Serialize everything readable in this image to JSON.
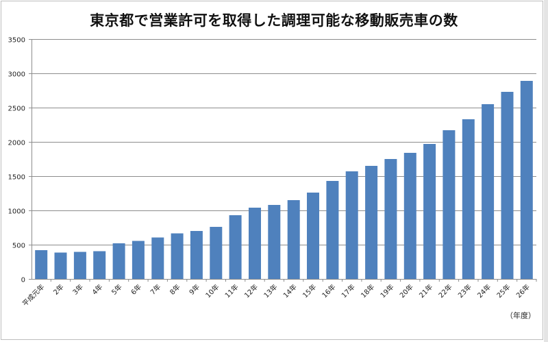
{
  "chart_data": {
    "type": "bar",
    "title": "東京都で営業許可を取得した調理可能な移動販売車の数",
    "xlabel": "（年度）",
    "ylabel": "",
    "ylim": [
      0,
      3500
    ],
    "yticks": [
      0,
      500,
      1000,
      1500,
      2000,
      2500,
      3000,
      3500
    ],
    "grid": true,
    "categories": [
      "平成元年",
      "2年",
      "3年",
      "4年",
      "5年",
      "6年",
      "7年",
      "8年",
      "9年",
      "10年",
      "11年",
      "12年",
      "13年",
      "14年",
      "15年",
      "16年",
      "17年",
      "18年",
      "19年",
      "20年",
      "21年",
      "22年",
      "23年",
      "24年",
      "25年",
      "26年"
    ],
    "values": [
      420,
      385,
      395,
      405,
      520,
      555,
      605,
      665,
      700,
      760,
      930,
      1040,
      1080,
      1150,
      1260,
      1430,
      1570,
      1650,
      1750,
      1840,
      1970,
      2170,
      2330,
      2550,
      2730,
      2890
    ],
    "bar_color": "#4f81bd"
  }
}
